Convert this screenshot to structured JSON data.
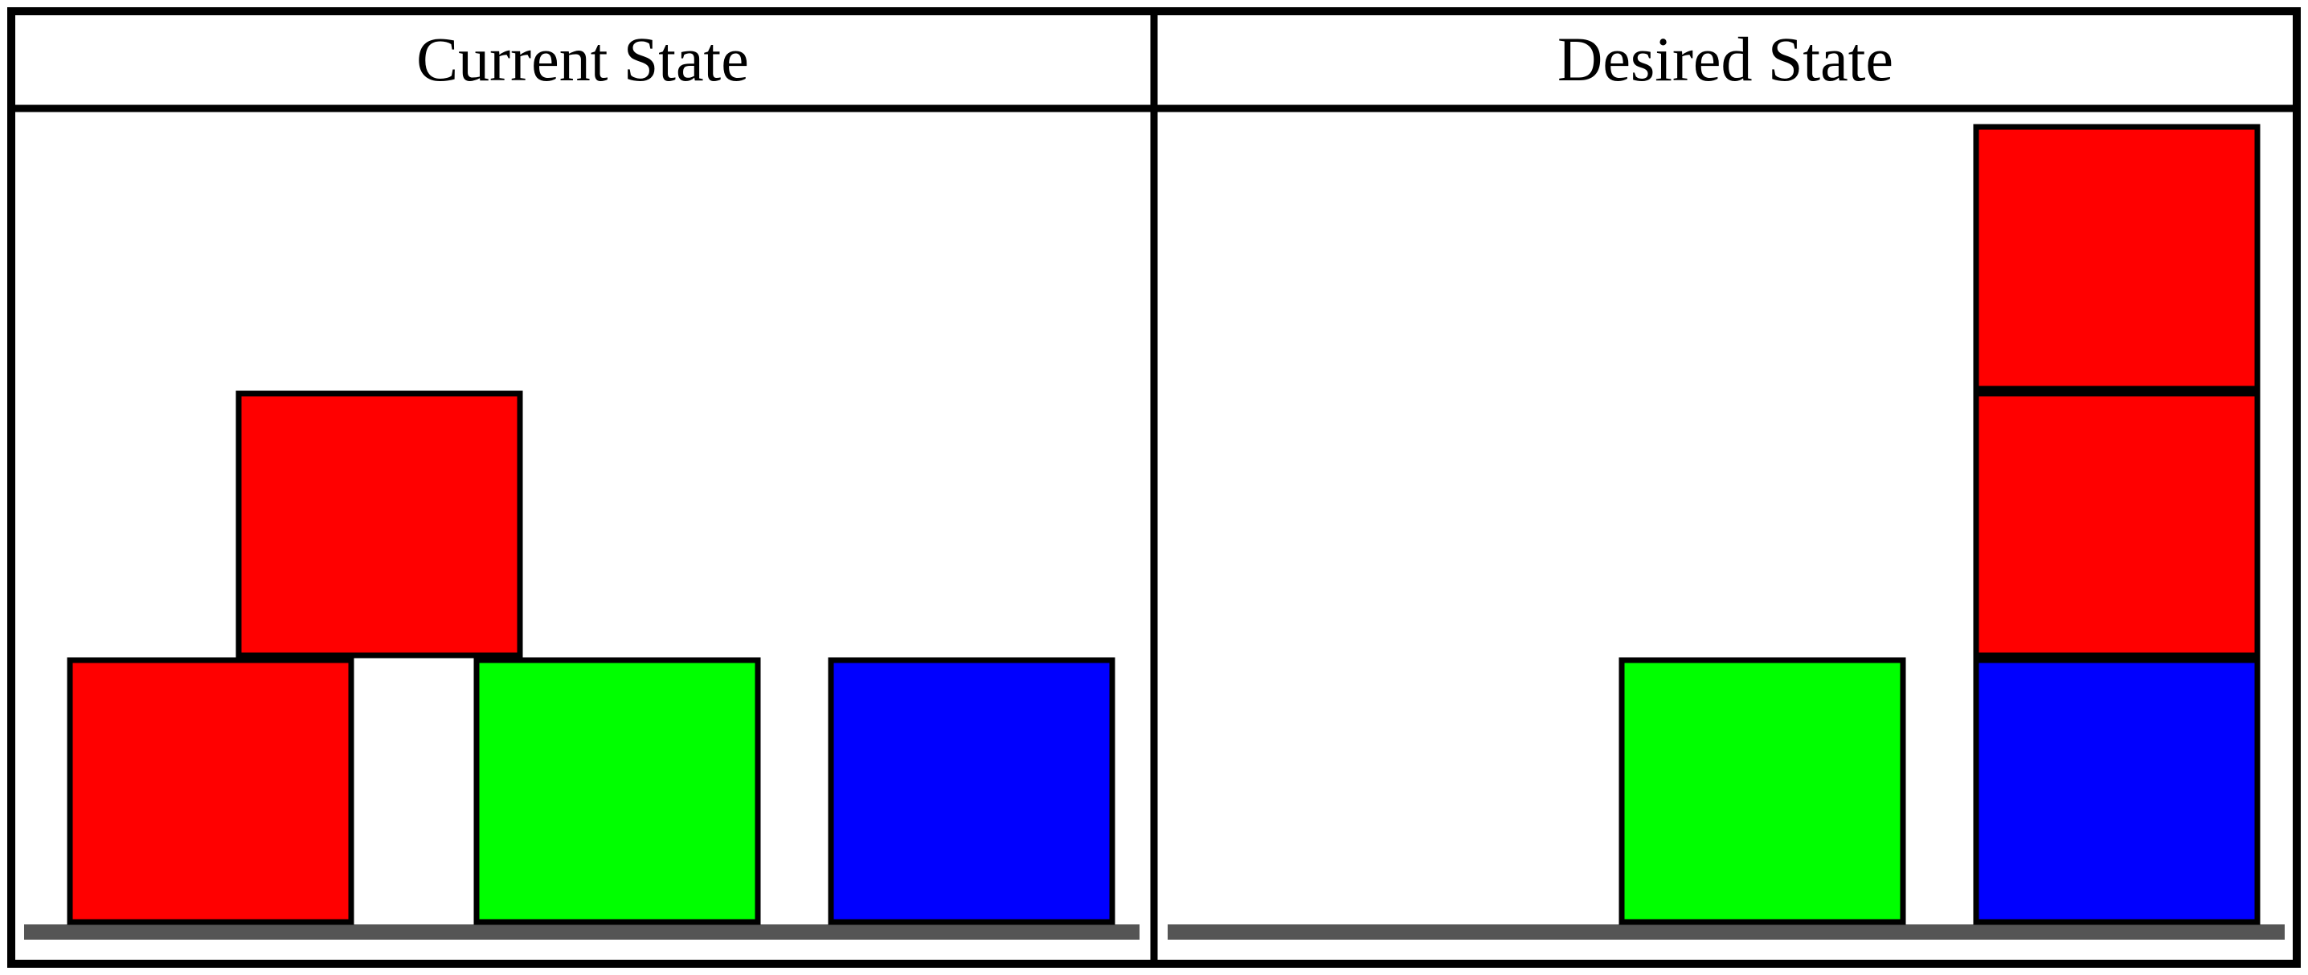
{
  "panels": [
    {
      "title": "Current State",
      "blocks": [
        {
          "color": "#ff0000",
          "column": 0,
          "level": 0
        },
        {
          "color": "#ff0000",
          "column": 0.5,
          "level": 1
        },
        {
          "color": "#00ff00",
          "column": 1,
          "level": 0
        },
        {
          "color": "#0000ff",
          "column": 2,
          "level": 0
        }
      ]
    },
    {
      "title": "Desired State",
      "blocks": [
        {
          "color": "#00ff00",
          "column": 1,
          "level": 0
        },
        {
          "color": "#0000ff",
          "column": 2,
          "level": 0
        },
        {
          "color": "#ff0000",
          "column": 2,
          "level": 1
        },
        {
          "color": "#ff0000",
          "column": 2,
          "level": 2
        }
      ]
    }
  ],
  "colors": {
    "border": "#000000",
    "ground": "#555555",
    "background": "#ffffff"
  }
}
